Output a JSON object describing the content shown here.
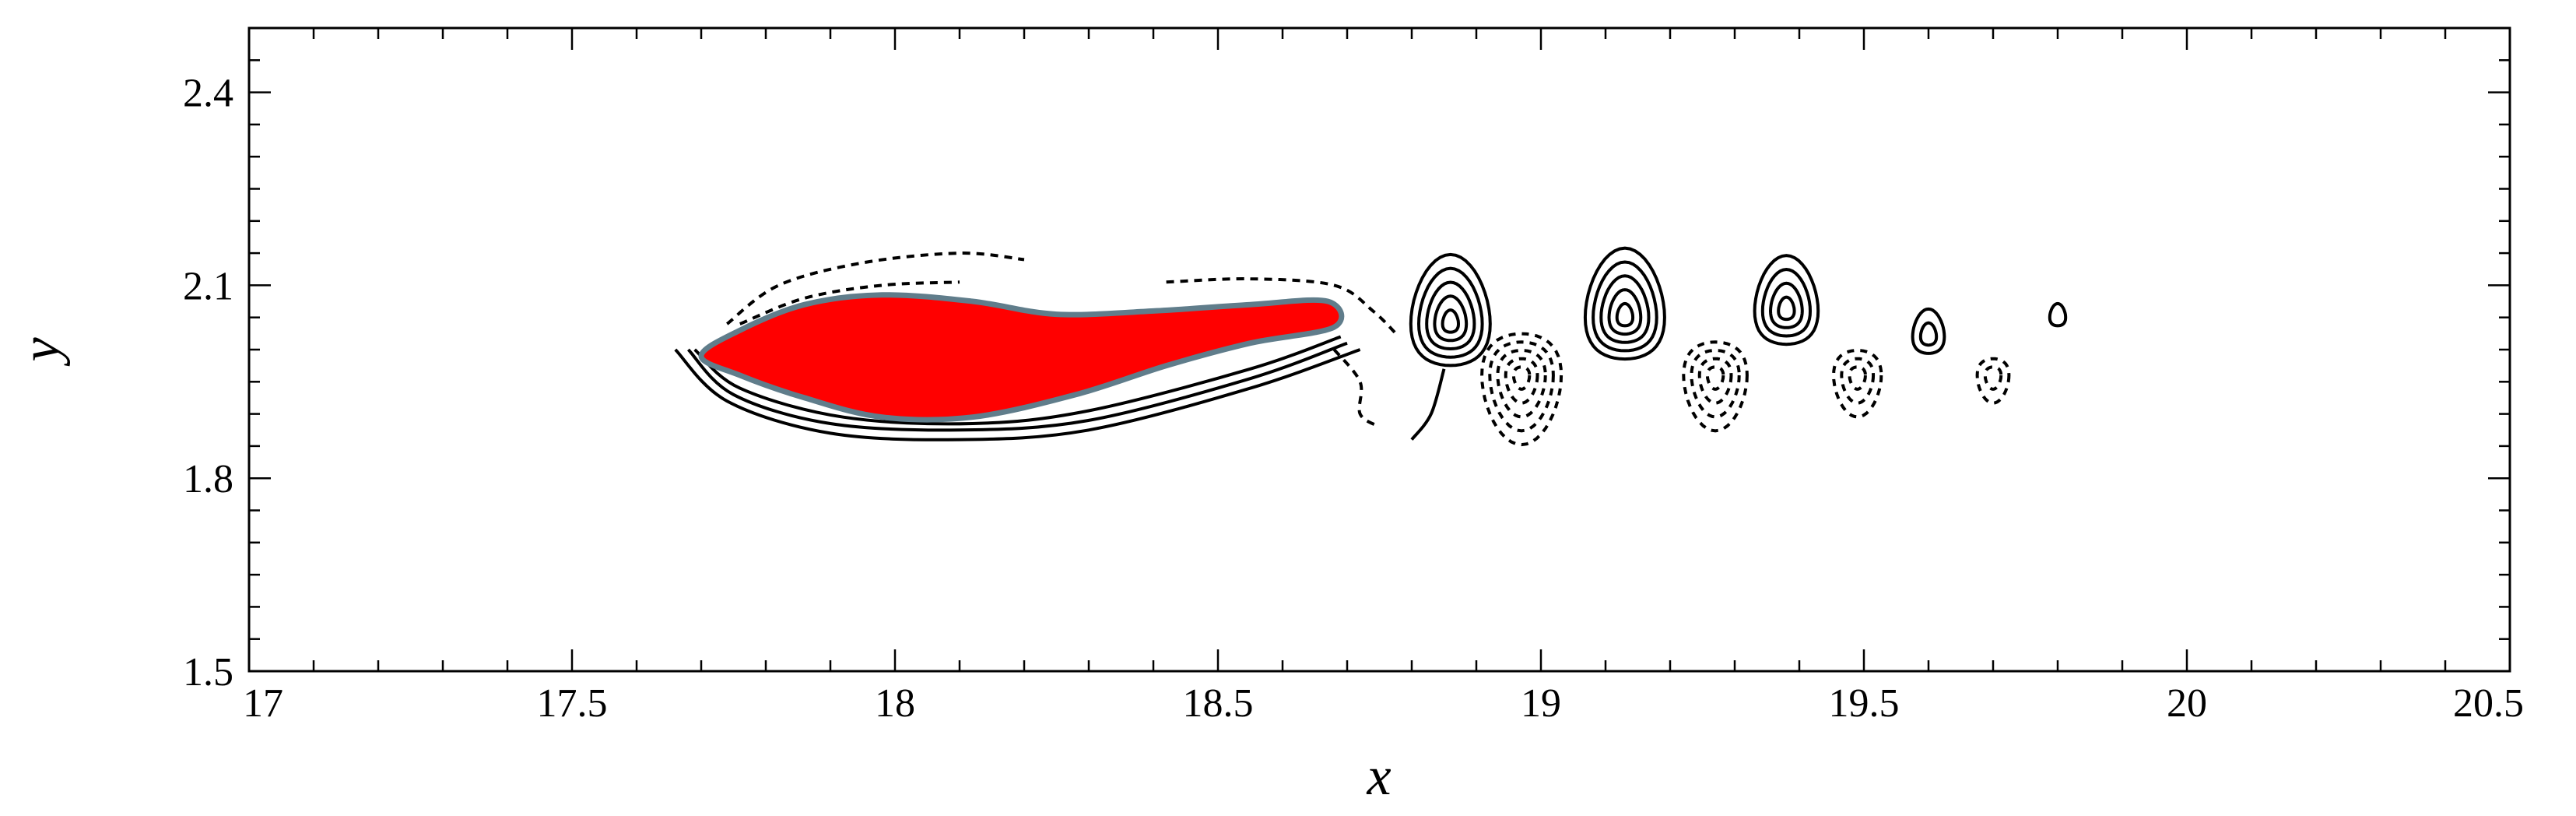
{
  "chart_data": {
    "type": "contour",
    "xlabel": "x",
    "ylabel": "y",
    "xlim": [
      17,
      20.5
    ],
    "ylim": [
      1.5,
      2.5
    ],
    "xticks": [
      {
        "value": 17,
        "label": "17"
      },
      {
        "value": 17.5,
        "label": "17.5"
      },
      {
        "value": 18,
        "label": "18"
      },
      {
        "value": 18.5,
        "label": "18.5"
      },
      {
        "value": 19,
        "label": "19"
      },
      {
        "value": 19.5,
        "label": "19.5"
      },
      {
        "value": 20,
        "label": "20"
      },
      {
        "value": 20.5,
        "label": "20.5"
      }
    ],
    "yticks": [
      {
        "value": 1.5,
        "label": "1.5"
      },
      {
        "value": 1.8,
        "label": "1.8"
      },
      {
        "value": 2.1,
        "label": "2.1"
      },
      {
        "value": 2.4,
        "label": "2.4"
      }
    ],
    "grid": false,
    "body": {
      "fill": "#ff0000",
      "outline": "#607d8b",
      "outline_points": [
        [
          17.7,
          1.99
        ],
        [
          17.76,
          2.03
        ],
        [
          17.86,
          2.07
        ],
        [
          17.98,
          2.085
        ],
        [
          18.12,
          2.075
        ],
        [
          18.25,
          2.055
        ],
        [
          18.4,
          2.06
        ],
        [
          18.55,
          2.07
        ],
        [
          18.67,
          2.075
        ],
        [
          18.68,
          2.035
        ],
        [
          18.55,
          2.01
        ],
        [
          18.42,
          1.975
        ],
        [
          18.28,
          1.93
        ],
        [
          18.12,
          1.895
        ],
        [
          17.98,
          1.895
        ],
        [
          17.86,
          1.925
        ],
        [
          17.76,
          1.96
        ]
      ]
    },
    "vortices": [
      {
        "x": 18.86,
        "y": 2.04,
        "sign": "positive",
        "levels": [
          0.015,
          0.03,
          0.045,
          0.06,
          0.075
        ]
      },
      {
        "x": 18.97,
        "y": 1.96,
        "sign": "negative",
        "levels": [
          0.015,
          0.03,
          0.045,
          0.06,
          0.075
        ]
      },
      {
        "x": 19.13,
        "y": 2.05,
        "sign": "positive",
        "levels": [
          0.015,
          0.03,
          0.045,
          0.06,
          0.075
        ]
      },
      {
        "x": 19.27,
        "y": 1.96,
        "sign": "negative",
        "levels": [
          0.015,
          0.03,
          0.045,
          0.06
        ]
      },
      {
        "x": 19.38,
        "y": 2.06,
        "sign": "positive",
        "levels": [
          0.015,
          0.03,
          0.045,
          0.06
        ]
      },
      {
        "x": 19.49,
        "y": 1.96,
        "sign": "negative",
        "levels": [
          0.015,
          0.03,
          0.045
        ]
      },
      {
        "x": 19.6,
        "y": 2.02,
        "sign": "positive",
        "levels": [
          0.015,
          0.03
        ]
      },
      {
        "x": 19.7,
        "y": 1.96,
        "sign": "negative",
        "levels": [
          0.015,
          0.03
        ]
      },
      {
        "x": 19.8,
        "y": 2.05,
        "sign": "positive",
        "levels": [
          0.015
        ]
      }
    ],
    "shear_layers": [
      {
        "sign": "positive",
        "points": [
          [
            17.68,
            2.0
          ],
          [
            17.75,
            1.93
          ],
          [
            17.9,
            1.885
          ],
          [
            18.1,
            1.875
          ],
          [
            18.3,
            1.89
          ],
          [
            18.55,
            1.955
          ],
          [
            18.7,
            2.01
          ]
        ]
      },
      {
        "sign": "positive",
        "points": [
          [
            17.66,
            2.0
          ],
          [
            17.74,
            1.92
          ],
          [
            17.9,
            1.87
          ],
          [
            18.1,
            1.86
          ],
          [
            18.3,
            1.875
          ],
          [
            18.55,
            1.94
          ],
          [
            18.72,
            2.0
          ]
        ]
      },
      {
        "sign": "positive",
        "points": [
          [
            17.69,
            2.0
          ],
          [
            17.76,
            1.94
          ],
          [
            17.92,
            1.895
          ],
          [
            18.12,
            1.885
          ],
          [
            18.3,
            1.905
          ],
          [
            18.55,
            1.97
          ],
          [
            18.69,
            2.02
          ]
        ]
      },
      {
        "sign": "negative",
        "points": [
          [
            17.74,
            2.04
          ],
          [
            17.82,
            2.1
          ],
          [
            17.95,
            2.135
          ],
          [
            18.1,
            2.15
          ],
          [
            18.2,
            2.14
          ]
        ]
      },
      {
        "sign": "negative",
        "points": [
          [
            17.76,
            2.04
          ],
          [
            17.86,
            2.08
          ],
          [
            17.98,
            2.1
          ],
          [
            18.1,
            2.105
          ]
        ]
      },
      {
        "sign": "negative",
        "points": [
          [
            18.42,
            2.105
          ],
          [
            18.55,
            2.11
          ],
          [
            18.68,
            2.1
          ],
          [
            18.74,
            2.06
          ],
          [
            18.78,
            2.02
          ]
        ]
      },
      {
        "sign": "negative",
        "points": [
          [
            18.68,
            2.0
          ],
          [
            18.72,
            1.95
          ],
          [
            18.72,
            1.9
          ],
          [
            18.75,
            1.88
          ]
        ]
      },
      {
        "sign": "positive",
        "points": [
          [
            18.85,
            1.97
          ],
          [
            18.83,
            1.9
          ],
          [
            18.8,
            1.86
          ]
        ]
      }
    ]
  }
}
